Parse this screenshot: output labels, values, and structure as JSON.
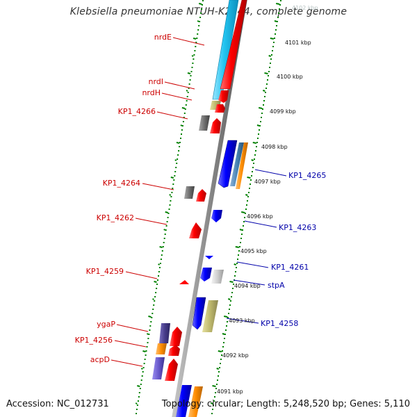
{
  "title": "Klebsiella pneumoniae NTUH-K2044, complete genome",
  "footer": {
    "accession": "Accession: NC_012731",
    "topology": "Topology: circular; Length: 5,248,520 bp; Genes: 5,110"
  },
  "scale_labels": [
    "4102 kbp",
    "4101 kbp",
    "4100 kbp",
    "4099 kbp",
    "4098 kbp",
    "4097 kbp",
    "4096 kbp",
    "4095 kbp",
    "4094 kbp",
    "4093 kbp",
    "4092 kbp",
    "4091 kbp"
  ],
  "genes_left": [
    "nrdE",
    "nrdI",
    "nrdH",
    "KP1_4266",
    "KP1_4264",
    "KP1_4262",
    "KP1_4259",
    "ygaP",
    "KP1_4256",
    "acpD"
  ],
  "genes_right": [
    "KP1_4265",
    "KP1_4263",
    "KP1_4261",
    "stpA",
    "KP1_4258"
  ],
  "colors": {
    "forward_gene": "#ff0000",
    "reverse_gene": "#0000ff",
    "left_label": "#cc0000",
    "right_label": "#0000aa",
    "backbone": "#808080",
    "tick": "#008000",
    "cyan_feature": "#22c4f0",
    "olive_feature": "#bdb76b",
    "gray_feature": "#707070",
    "steel_feature": "#4682b4",
    "orange_feature": "#ff8c00",
    "purple_feature": "#6a5acd"
  }
}
